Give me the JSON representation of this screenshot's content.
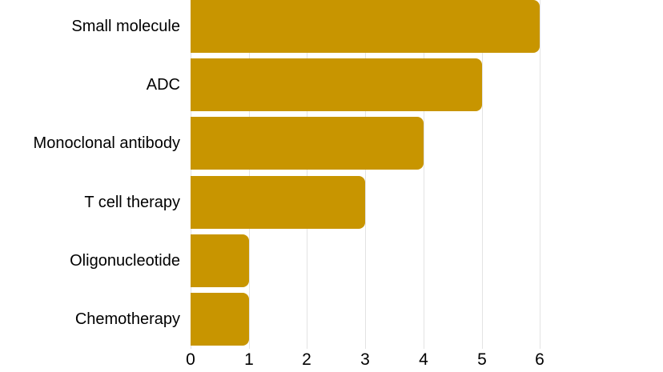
{
  "chart_data": {
    "type": "bar",
    "orientation": "horizontal",
    "title": "",
    "xlabel": "",
    "ylabel": "",
    "categories": [
      "Small molecule",
      "ADC",
      "Monoclonal antibody",
      "T cell therapy",
      "Oligonucleotide",
      "Chemotherapy"
    ],
    "values": [
      6,
      5,
      4,
      3,
      1,
      1
    ],
    "xlim": [
      0,
      6
    ],
    "xticks": [
      "0",
      "1",
      "2",
      "3",
      "4",
      "5",
      "6"
    ],
    "grid": true,
    "legend": false,
    "colors": {
      "bar": "#C89500",
      "gridline": "#E3E3E3",
      "axis_text": "#000000",
      "category_text": "#000000",
      "background": "#FFFFFF"
    }
  }
}
